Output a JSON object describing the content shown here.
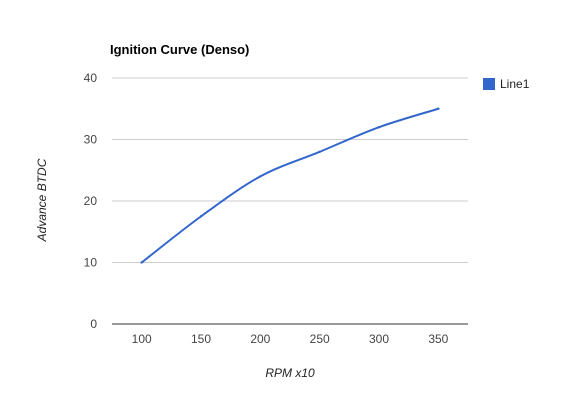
{
  "chart_data": {
    "type": "line",
    "title": "Ignition Curve (Denso)",
    "xlabel": "RPM x10",
    "ylabel": "Advance BTDC",
    "x": [
      100,
      150,
      200,
      250,
      300,
      350
    ],
    "xlim": [
      75,
      375
    ],
    "ylim": [
      0,
      40
    ],
    "yticks": [
      0,
      10,
      20,
      30,
      40
    ],
    "grid": true,
    "legend_position": "right",
    "series": [
      {
        "name": "Line1",
        "color": "#3366cc",
        "values": [
          10,
          17.5,
          24,
          28,
          32,
          35
        ]
      }
    ]
  }
}
